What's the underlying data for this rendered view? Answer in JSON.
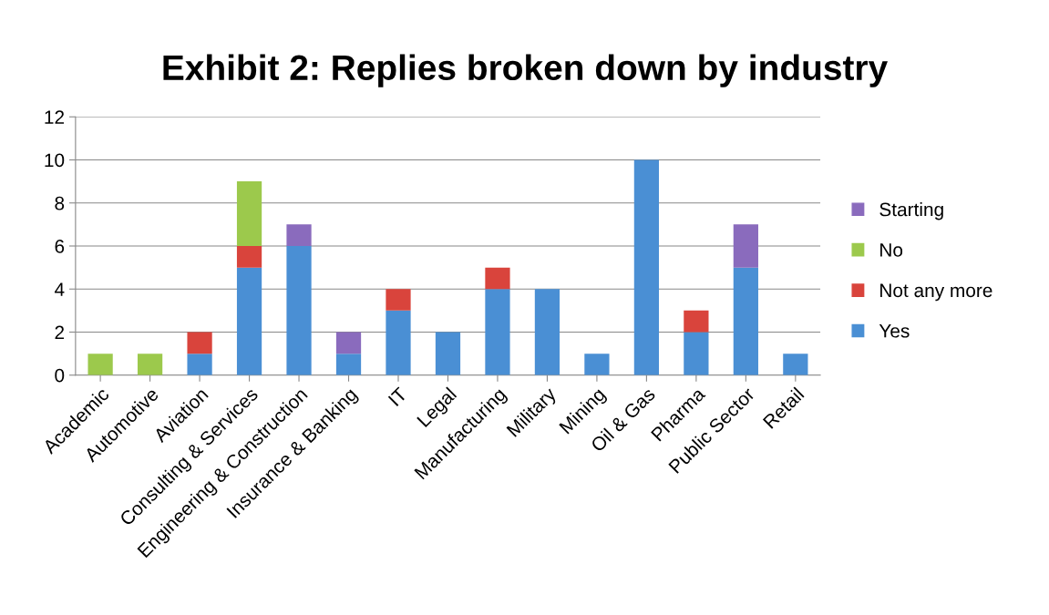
{
  "chart_data": {
    "type": "bar",
    "title": "Exhibit 2: Replies broken down by industry",
    "stacked": true,
    "categories": [
      "Academic",
      "Automotive",
      "Aviation",
      "Consulting & Services",
      "Engineering & Construction",
      "Insurance & Banking",
      "IT",
      "Legal",
      "Manufacturing",
      "Military",
      "Mining",
      "Oil & Gas",
      "Pharma",
      "Public Sector",
      "Retail"
    ],
    "series": [
      {
        "name": "Yes",
        "color": "#4a8fd4",
        "values": [
          0,
          0,
          1,
          5,
          6,
          1,
          3,
          2,
          4,
          4,
          1,
          10,
          2,
          5,
          1
        ]
      },
      {
        "name": "Not any more",
        "color": "#d9443c",
        "values": [
          0,
          0,
          1,
          1,
          0,
          0,
          1,
          0,
          1,
          0,
          0,
          0,
          1,
          0,
          0
        ]
      },
      {
        "name": "No",
        "color": "#9cc94c",
        "values": [
          1,
          1,
          0,
          3,
          0,
          0,
          0,
          0,
          0,
          0,
          0,
          0,
          0,
          0,
          0
        ]
      },
      {
        "name": "Starting",
        "color": "#8a6bbd",
        "values": [
          0,
          0,
          0,
          0,
          1,
          1,
          0,
          0,
          0,
          0,
          0,
          0,
          0,
          2,
          0
        ]
      }
    ],
    "ylim": [
      0,
      12
    ],
    "yticks": [
      0,
      2,
      4,
      6,
      8,
      10,
      12
    ],
    "grid": "y",
    "legend": "right"
  }
}
